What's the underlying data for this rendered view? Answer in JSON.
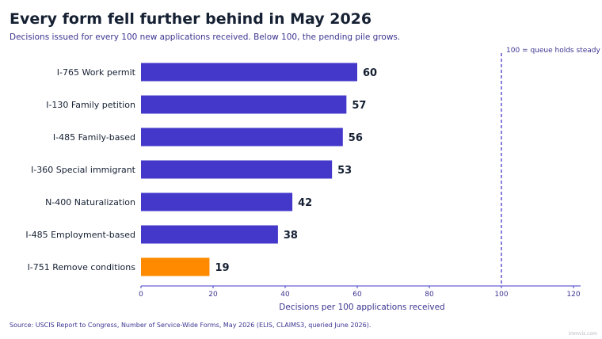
{
  "header": {
    "title": "Every form fell further behind in May 2026",
    "subtitle": "Decisions issued for every 100 new applications received. Below 100, the pending pile grows."
  },
  "chart_data": {
    "type": "bar",
    "orientation": "horizontal",
    "categories": [
      "I-765 Work permit",
      "I-130 Family petition",
      "I-485 Family-based",
      "I-360 Special immigrant",
      "N-400 Naturalization",
      "I-485 Employment-based",
      "I-751 Remove conditions"
    ],
    "values": [
      60,
      57,
      56,
      53,
      42,
      38,
      19
    ],
    "bar_colors": [
      "#4338ca",
      "#4338ca",
      "#4338ca",
      "#4338ca",
      "#4338ca",
      "#4338ca",
      "#ff8a00"
    ],
    "xlabel": "Decisions per 100 applications received",
    "xlim": [
      0,
      120
    ],
    "xticks": [
      0,
      20,
      40,
      60,
      80,
      100,
      120
    ],
    "grid": false,
    "reference_line": {
      "value": 100,
      "label": "100 = queue holds steady",
      "style": "dashed",
      "color": "#4338ca"
    }
  },
  "footer": {
    "source": "Source: USCIS Report to Congress, Number of Service-Wide Forms, May 2026 (ELIS, CLAIMS3, queried June 2026).",
    "brand": "immviz.com"
  },
  "colors": {
    "primary_bar": "#4338ca",
    "highlight_bar": "#ff8a00",
    "title_text": "#152033",
    "secondary_text": "#3b3590",
    "axis_line": "#4338ca"
  }
}
